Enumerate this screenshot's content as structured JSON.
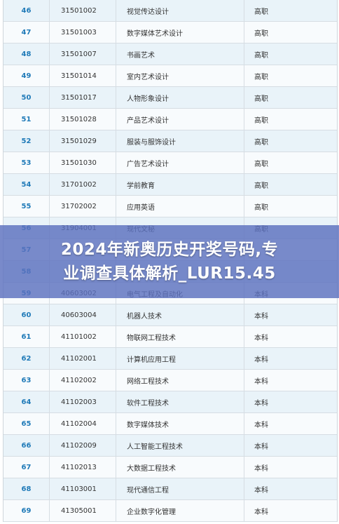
{
  "table": {
    "rows": [
      {
        "no": "46",
        "code": "31501002",
        "name": "视觉传达设计",
        "level": "高职"
      },
      {
        "no": "47",
        "code": "31501003",
        "name": "数字媒体艺术设计",
        "level": "高职"
      },
      {
        "no": "48",
        "code": "31501007",
        "name": "书画艺术",
        "level": "高职"
      },
      {
        "no": "49",
        "code": "31501014",
        "name": "室内艺术设计",
        "level": "高职"
      },
      {
        "no": "50",
        "code": "31501017",
        "name": "人物形象设计",
        "level": "高职"
      },
      {
        "no": "51",
        "code": "31501028",
        "name": "产品艺术设计",
        "level": "高职"
      },
      {
        "no": "52",
        "code": "31501029",
        "name": "服装与服饰设计",
        "level": "高职"
      },
      {
        "no": "53",
        "code": "31501030",
        "name": "广告艺术设计",
        "level": "高职"
      },
      {
        "no": "54",
        "code": "31701002",
        "name": "学前教育",
        "level": "高职"
      },
      {
        "no": "55",
        "code": "31702002",
        "name": "应用英语",
        "level": "高职"
      },
      {
        "no": "56",
        "code": "31904001",
        "name": "现代文秘",
        "level": "高职"
      },
      {
        "no": "57",
        "code": "",
        "name": "",
        "level": ""
      },
      {
        "no": "58",
        "code": "",
        "name": "",
        "level": ""
      },
      {
        "no": "59",
        "code": "40603002",
        "name": "电气工程及自动化",
        "level": "本科"
      },
      {
        "no": "60",
        "code": "40603004",
        "name": "机器人技术",
        "level": "本科"
      },
      {
        "no": "61",
        "code": "41101002",
        "name": "物联网工程技术",
        "level": "本科"
      },
      {
        "no": "62",
        "code": "41102001",
        "name": "计算机应用工程",
        "level": "本科"
      },
      {
        "no": "63",
        "code": "41102002",
        "name": "网络工程技术",
        "level": "本科"
      },
      {
        "no": "64",
        "code": "41102003",
        "name": "软件工程技术",
        "level": "本科"
      },
      {
        "no": "65",
        "code": "41102004",
        "name": "数字媒体技术",
        "level": "本科"
      },
      {
        "no": "66",
        "code": "41102009",
        "name": "人工智能工程技术",
        "level": "本科"
      },
      {
        "no": "67",
        "code": "41102013",
        "name": "大数据工程技术",
        "level": "本科"
      },
      {
        "no": "68",
        "code": "41103001",
        "name": "现代通信工程",
        "level": "本科"
      },
      {
        "no": "69",
        "code": "41305001",
        "name": "企业数字化管理",
        "level": "本科"
      }
    ]
  },
  "banner": {
    "line1": "2024年新奥历史开奖号码,专",
    "line2": "业调查具体解析_LUR15.45"
  },
  "colors": {
    "row_odd": "#e9f3f9",
    "row_even": "#f8fbfd",
    "number": "#1f7ab8",
    "banner": "#5c70be"
  }
}
